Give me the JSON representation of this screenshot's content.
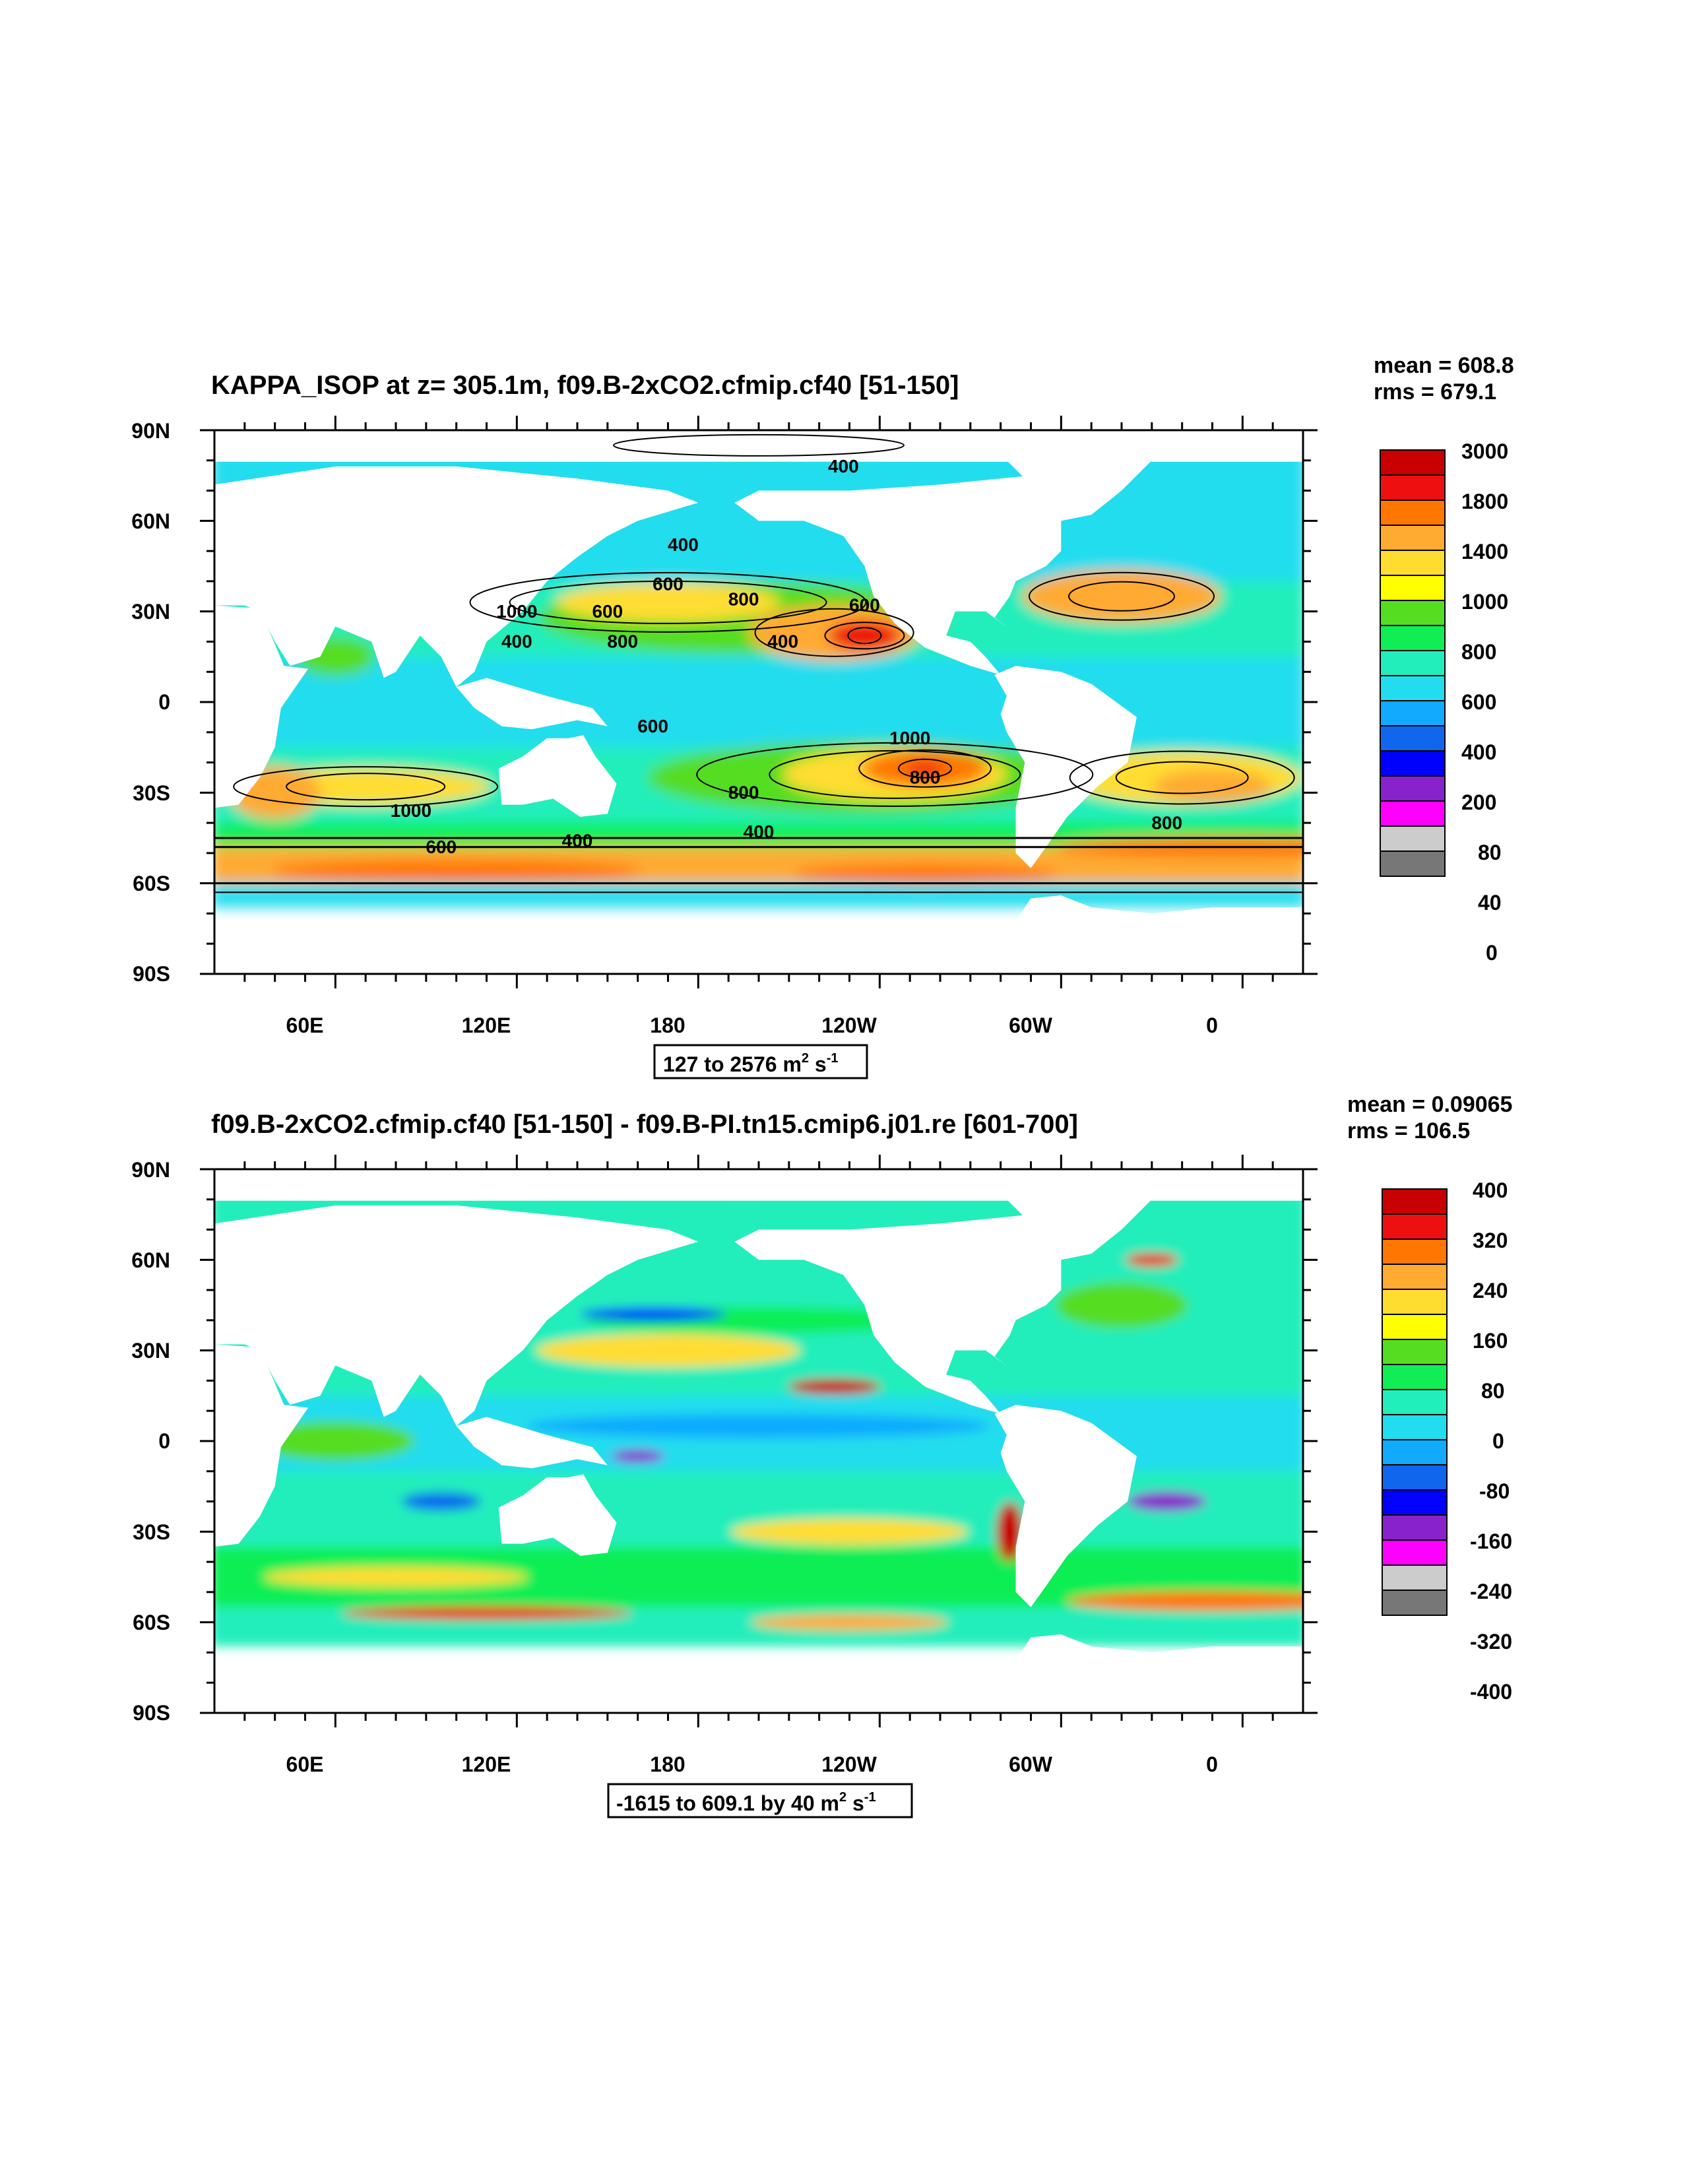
{
  "chart_data": [
    {
      "type": "heatmap",
      "title": "KAPPA_ISOP at z= 305.1m, f09.B-2xCO2.cfmip.cf40 [51-150]",
      "stats": {
        "mean": "mean = 608.8",
        "rms": "rms = 679.1"
      },
      "lat_ticks": [
        "90N",
        "60N",
        "30N",
        "0",
        "30S",
        "60S",
        "90S"
      ],
      "lon_ticks": [
        "60E",
        "120E",
        "180",
        "120W",
        "60W",
        "0"
      ],
      "range_label_main": "127 to 2576 m",
      "range_label_sup1": "2",
      "range_label_mid": " s",
      "range_label_sup2": "-1",
      "colorbar_levels": [
        "3000",
        "1800",
        "1400",
        "1000",
        "800",
        "600",
        "400",
        "200",
        "80",
        "40",
        "0"
      ],
      "colorbar_colors": [
        "#c80000",
        "#ee1010",
        "#ff7700",
        "#ffaa30",
        "#ffdd30",
        "#ffff00",
        "#55dd22",
        "#11ee55",
        "#22eebb",
        "#22ddee",
        "#11aaff",
        "#1166ee",
        "#0000ff",
        "#8822cc",
        "#ff00ff",
        "#cccccc",
        "#777777"
      ],
      "contour_labels": [
        "400",
        "400",
        "600",
        "1000",
        "600",
        "800",
        "600",
        "800",
        "400",
        "400",
        "600",
        "1000",
        "800",
        "800",
        "1000",
        "800",
        "400",
        "400",
        "600"
      ],
      "features": [
        {
          "lon": 145,
          "lat": 25,
          "value": 1200
        },
        {
          "lon": 235,
          "lat": 22,
          "value": 1800
        },
        {
          "lon": 255,
          "lat": -22,
          "value": 1800
        },
        {
          "lon": 315,
          "lat": 35,
          "value": 1200
        },
        {
          "lon": 110,
          "lat": -55,
          "value": 1400
        },
        {
          "lon": 200,
          "lat": 55,
          "value": 400
        }
      ]
    },
    {
      "type": "heatmap",
      "title": "f09.B-2xCO2.cfmip.cf40 [51-150] - f09.B-PI.tn15.cmip6.j01.re [601-700]",
      "stats": {
        "mean": "mean = 0.09065",
        "rms": "rms = 106.5"
      },
      "lat_ticks": [
        "90N",
        "60N",
        "30N",
        "0",
        "30S",
        "60S",
        "90S"
      ],
      "lon_ticks": [
        "60E",
        "120E",
        "180",
        "120W",
        "60W",
        "0"
      ],
      "range_label_main": "-1615 to 609.1 by 40 m",
      "range_label_sup1": "2",
      "range_label_mid": " s",
      "range_label_sup2": "-1",
      "colorbar_levels": [
        "400",
        "320",
        "240",
        "160",
        "80",
        "0",
        "-80",
        "-160",
        "-240",
        "-320",
        "-400"
      ],
      "colorbar_colors": [
        "#c80000",
        "#ee1010",
        "#ff7700",
        "#ffaa30",
        "#ffdd30",
        "#ffff00",
        "#55dd22",
        "#11ee55",
        "#22eebb",
        "#22ddee",
        "#11aaff",
        "#1166ee",
        "#0000ff",
        "#8822cc",
        "#ff00ff",
        "#cccccc",
        "#777777"
      ]
    }
  ]
}
